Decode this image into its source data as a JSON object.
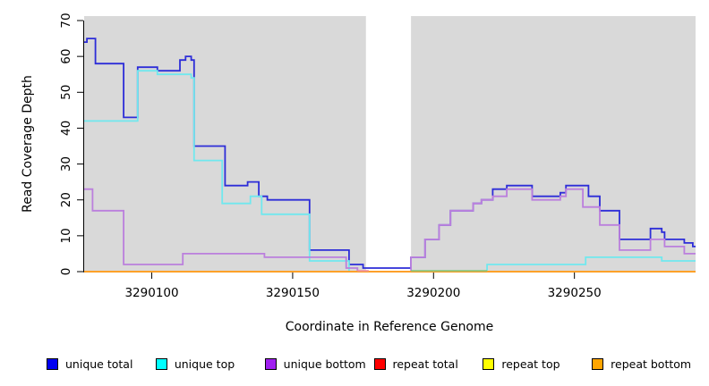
{
  "chart_data": {
    "type": "line",
    "subtype": "step-coverage-plot",
    "title": "",
    "xlabel": "Coordinate in Reference Genome",
    "ylabel": "Read Coverage Depth",
    "xlim": [
      3290076,
      3290293
    ],
    "ylim": [
      0,
      70
    ],
    "x_ticks": [
      3290100,
      3290150,
      3290200,
      3290250
    ],
    "y_ticks": [
      0,
      10,
      20,
      30,
      40,
      50,
      60,
      70
    ],
    "grid": false,
    "plot_bg_color": "#d9d9d9",
    "axis_color": "#000000",
    "no_data_band": {
      "x0": 3290176,
      "x1": 3290192,
      "color": "#ffffff"
    },
    "legend_position": "bottom",
    "series": [
      {
        "name": "unique total",
        "color": "#2d2dd8",
        "legend_color": "#0000f0",
        "steps": [
          [
            3290076,
            64
          ],
          [
            3290077,
            65
          ],
          [
            3290080,
            58
          ],
          [
            3290090,
            43
          ],
          [
            3290095,
            57
          ],
          [
            3290102,
            56
          ],
          [
            3290110,
            59
          ],
          [
            3290112,
            60
          ],
          [
            3290114,
            59
          ],
          [
            3290115,
            35
          ],
          [
            3290126,
            24
          ],
          [
            3290134,
            25
          ],
          [
            3290138,
            21
          ],
          [
            3290141,
            20
          ],
          [
            3290156,
            6
          ],
          [
            3290170,
            2
          ],
          [
            3290175,
            1
          ],
          [
            3290192,
            4
          ],
          [
            3290197,
            9
          ],
          [
            3290202,
            13
          ],
          [
            3290206,
            17
          ],
          [
            3290214,
            19
          ],
          [
            3290217,
            20
          ],
          [
            3290221,
            23
          ],
          [
            3290226,
            24
          ],
          [
            3290235,
            21
          ],
          [
            3290245,
            22
          ],
          [
            3290247,
            24
          ],
          [
            3290255,
            21
          ],
          [
            3290259,
            17
          ],
          [
            3290266,
            9
          ],
          [
            3290277,
            12
          ],
          [
            3290281,
            11
          ],
          [
            3290282,
            9
          ],
          [
            3290289,
            8
          ],
          [
            3290292,
            7
          ]
        ]
      },
      {
        "name": "unique top",
        "color": "#70e8ee",
        "legend_color": "#00ffff",
        "steps": [
          [
            3290076,
            42
          ],
          [
            3290095,
            56
          ],
          [
            3290102,
            55
          ],
          [
            3290114,
            54
          ],
          [
            3290115,
            31
          ],
          [
            3290125,
            19
          ],
          [
            3290135,
            21
          ],
          [
            3290139,
            16
          ],
          [
            3290156,
            3
          ],
          [
            3290170,
            0
          ],
          [
            3290219,
            2
          ],
          [
            3290254,
            4
          ],
          [
            3290281,
            3
          ]
        ]
      },
      {
        "name": "unique bottom",
        "color": "#bb7fdd",
        "legend_color": "#a020f0",
        "steps": [
          [
            3290076,
            23
          ],
          [
            3290079,
            17
          ],
          [
            3290090,
            2
          ],
          [
            3290111,
            5
          ],
          [
            3290140,
            4
          ],
          [
            3290169,
            1
          ],
          [
            3290173,
            0
          ],
          [
            3290192,
            4
          ],
          [
            3290197,
            9
          ],
          [
            3290202,
            13
          ],
          [
            3290206,
            17
          ],
          [
            3290214,
            19
          ],
          [
            3290217,
            20
          ],
          [
            3290221,
            21
          ],
          [
            3290226,
            23
          ],
          [
            3290235,
            20
          ],
          [
            3290245,
            21
          ],
          [
            3290247,
            23
          ],
          [
            3290253,
            18
          ],
          [
            3290259,
            13
          ],
          [
            3290266,
            6
          ],
          [
            3290277,
            9
          ],
          [
            3290282,
            7
          ],
          [
            3290289,
            5
          ]
        ]
      },
      {
        "name": "repeat total",
        "color": "#e02020",
        "legend_color": "#ff0000",
        "steps": [
          [
            3290076,
            0
          ]
        ]
      },
      {
        "name": "repeat top",
        "color": "#ffe800",
        "legend_color": "#ffff00",
        "steps": [
          [
            3290076,
            0
          ]
        ]
      },
      {
        "name": "repeat bottom",
        "color": "#ff9d2e",
        "legend_color": "#ffa500",
        "steps": [
          [
            3290076,
            0
          ]
        ]
      }
    ],
    "overlap_blend_segments": [
      {
        "name": "unique-top-at-zero-over-repeat-bottom",
        "color": "#7cc87f",
        "x0": 3290192,
        "x1": 3290219,
        "y": 0
      },
      {
        "name": "unique-bottom-at-zero-over-repeat-bottom",
        "color": "#ef8fa3",
        "x0": 3290173,
        "x1": 3290177,
        "y": 0
      }
    ]
  }
}
